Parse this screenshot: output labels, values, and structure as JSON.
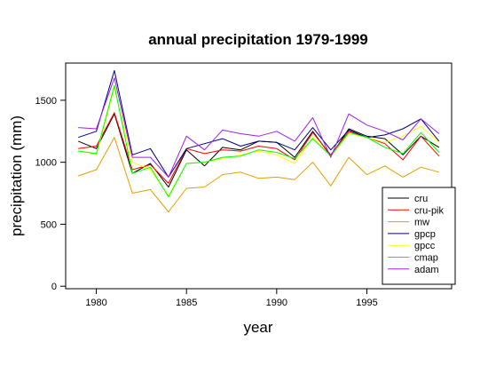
{
  "chart_data": {
    "type": "line",
    "title": "annual precipitation 1979-1999",
    "xlabel": "year",
    "ylabel": "precipitation (mm)",
    "xlim": [
      1978.3,
      1999.7
    ],
    "ylim": [
      -20,
      1800
    ],
    "xticks": [
      1980,
      1985,
      1990,
      1995
    ],
    "yticks": [
      0,
      500,
      1000,
      1500
    ],
    "grid": false,
    "legend_position": "bottom-right",
    "x": [
      1979,
      1980,
      1981,
      1982,
      1983,
      1984,
      1985,
      1986,
      1987,
      1988,
      1989,
      1990,
      1991,
      1992,
      1993,
      1994,
      1995,
      1996,
      1997,
      1998,
      1999
    ],
    "series": [
      {
        "name": "cru",
        "color": "#000000",
        "values": [
          1170,
          1110,
          1390,
          910,
          990,
          800,
          1100,
          970,
          1120,
          1100,
          1170,
          1160,
          1040,
          1250,
          1050,
          1270,
          1210,
          1190,
          1060,
          1210,
          1120
        ]
      },
      {
        "name": "cru-pik",
        "color": "#ff0000",
        "values": [
          1110,
          1130,
          1400,
          940,
          980,
          830,
          1110,
          1070,
          1100,
          1090,
          1130,
          1110,
          1020,
          1240,
          1060,
          1250,
          1200,
          1150,
          1020,
          1210,
          1050
        ]
      },
      {
        "name": "mw",
        "color": "#e0a000",
        "values": [
          890,
          940,
          1200,
          750,
          780,
          600,
          790,
          800,
          900,
          920,
          870,
          880,
          860,
          1000,
          810,
          1040,
          900,
          970,
          880,
          960,
          920
        ]
      },
      {
        "name": "gpcp",
        "color": "#000080",
        "values": [
          1200,
          1250,
          1740,
          1060,
          1110,
          880,
          1110,
          1150,
          1190,
          1130,
          1170,
          1160,
          1100,
          1280,
          1100,
          1260,
          1200,
          1220,
          1270,
          1350,
          1170
        ]
      },
      {
        "name": "gpcc",
        "color": "#ffff00",
        "values": [
          1100,
          1060,
          1600,
          1000,
          940,
          730,
          990,
          1000,
          1030,
          1060,
          1090,
          1060,
          990,
          1200,
          1050,
          1230,
          1200,
          1160,
          1210,
          1290,
          1160
        ]
      },
      {
        "name": "cmap",
        "color": "#00ff00",
        "values": [
          1090,
          1070,
          1620,
          910,
          960,
          720,
          990,
          1000,
          1040,
          1050,
          1100,
          1080,
          1030,
          1190,
          1050,
          1240,
          1200,
          1120,
          1070,
          1240,
          1080
        ]
      },
      {
        "name": "adam",
        "color": "#a020f0",
        "values": [
          1280,
          1270,
          1680,
          1040,
          1040,
          880,
          1210,
          1100,
          1260,
          1230,
          1210,
          1250,
          1170,
          1360,
          1040,
          1390,
          1300,
          1250,
          1180,
          1350,
          1230
        ]
      }
    ]
  }
}
